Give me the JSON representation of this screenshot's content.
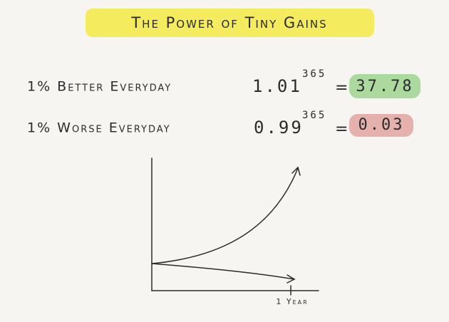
{
  "title": "The Power of Tiny Gains",
  "rows": [
    {
      "label": "1% Better Everyday",
      "base": "1.01",
      "exponent": "365",
      "equals": "=",
      "result": "37.78"
    },
    {
      "label": "1% Worse Everyday",
      "base": "0.99",
      "exponent": "365",
      "equals": "=",
      "result": "0.03"
    }
  ],
  "graph": {
    "x_label": "1 Year"
  }
}
